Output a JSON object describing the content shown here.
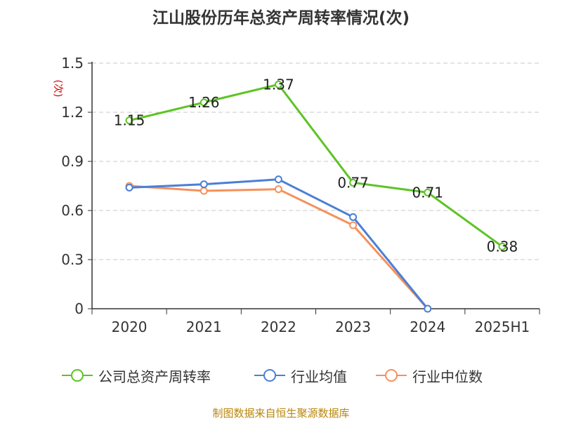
{
  "chart_data": {
    "type": "line",
    "title": "江山股份历年总资产周转率情况(次)",
    "ylabel": "(次)",
    "xlabel": "",
    "categories": [
      "2020",
      "2021",
      "2022",
      "2023",
      "2024",
      "2025H1"
    ],
    "ylim": [
      0,
      1.5
    ],
    "yticks": [
      "0",
      "0.3",
      "0.6",
      "0.9",
      "1.2",
      "1.5"
    ],
    "grid": true,
    "legend_position": "bottom",
    "series": [
      {
        "name": "公司总资产周转率",
        "color": "#5cc424",
        "values": [
          1.15,
          1.26,
          1.37,
          0.77,
          0.71,
          0.38
        ],
        "labels": [
          "1.15",
          "1.26",
          "1.37",
          "0.77",
          "0.71",
          "0.38"
        ]
      },
      {
        "name": "行业均值",
        "color": "#4a7fd6",
        "values": [
          0.74,
          0.76,
          0.79,
          0.56,
          0.0,
          null
        ]
      },
      {
        "name": "行业中位数",
        "color": "#f5915c",
        "values": [
          0.75,
          0.72,
          0.73,
          0.51,
          0.0,
          null
        ]
      }
    ]
  },
  "source": "制图数据来自恒生聚源数据库"
}
